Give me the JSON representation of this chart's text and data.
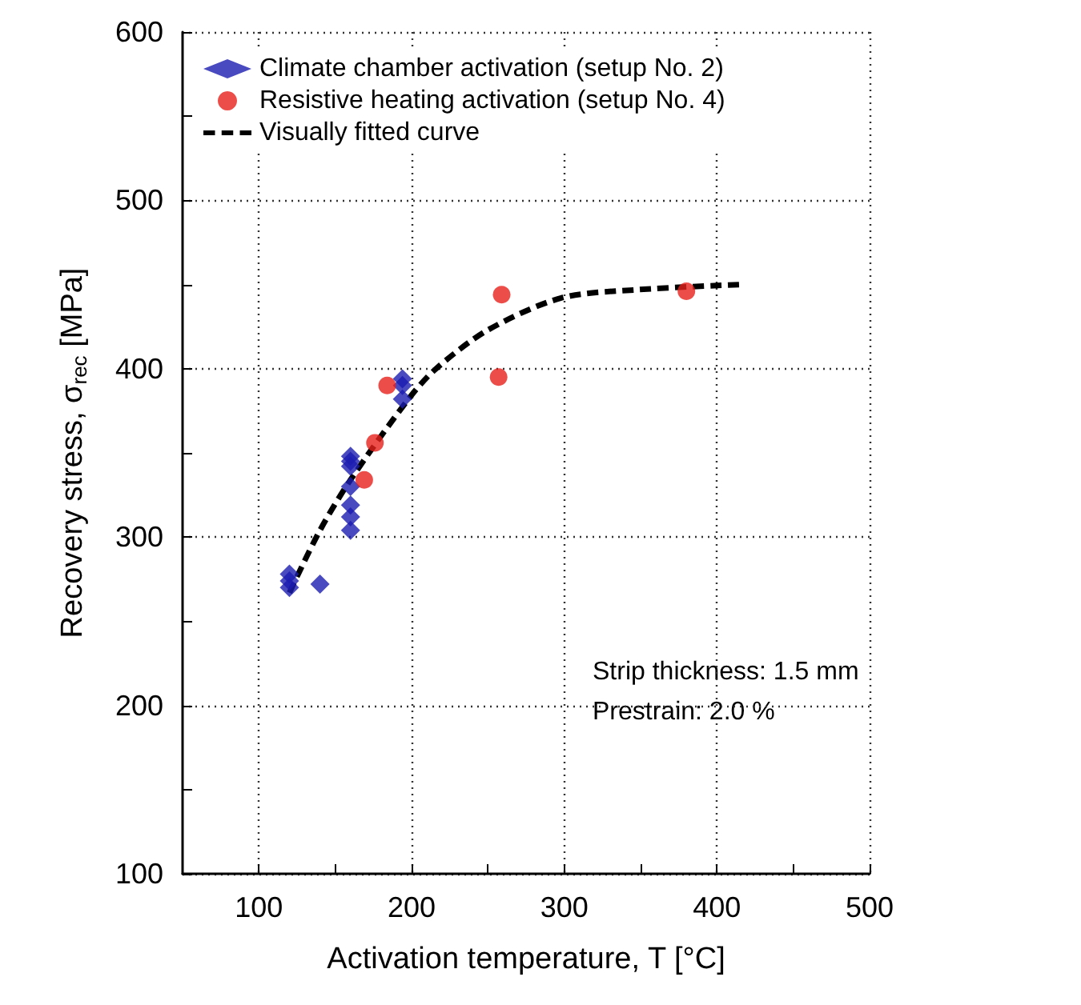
{
  "chart_data": {
    "type": "scatter",
    "xlabel": "Activation temperature, T [°C]",
    "ylabel": "Recovery stress, σ$_{rec}$ [MPa]",
    "xlim": [
      50,
      500
    ],
    "xticks": [
      100,
      {
        "value": 150,
        "label": null
      },
      200,
      {
        "value": 250,
        "label": null
      },
      300,
      {
        "value": 350,
        "label": null
      },
      400,
      {
        "value": 450,
        "label": null
      },
      500
    ],
    "ylim": [
      100,
      600
    ],
    "yticks": [
      100,
      {
        "value": 150,
        "label": null
      },
      200,
      {
        "value": 250,
        "label": null
      },
      300,
      {
        "value": 350,
        "label": null
      },
      400,
      {
        "value": 450,
        "label": null
      },
      500,
      {
        "value": 550,
        "label": null
      },
      600
    ],
    "grid": true,
    "legend": "top left",
    "annotations": [
      "Strip thickness: 1.5 mm",
      "Prestrain: 2.0 %"
    ],
    "series": [
      {
        "name": "Climate chamber activation (setup No. 2)",
        "marker": "diamond",
        "color": "#1c1cb0",
        "x": [
          120,
          120,
          120,
          140,
          160,
          160,
          160,
          160,
          160,
          160,
          160,
          194,
          194,
          194
        ],
        "values": [
          278,
          274,
          270,
          272,
          348,
          345,
          342,
          330,
          319,
          312,
          304,
          394,
          390,
          382
        ]
      },
      {
        "name": "Resistive heating activation (setup No. 4)",
        "marker": "circle",
        "color": "#e8201c",
        "x": [
          169,
          176,
          184,
          257,
          259,
          380
        ],
        "values": [
          334,
          356,
          390,
          395,
          444,
          446
        ]
      },
      {
        "name": "Visually fitted curve",
        "type": "line",
        "marker": "none",
        "line_style": "dashed",
        "color": "#000000",
        "x": [
          120,
          140,
          160,
          198,
          216,
          250,
          298,
          349,
          415
        ],
        "values": [
          267,
          304,
          334,
          382,
          400,
          423,
          442,
          447,
          450
        ]
      }
    ]
  }
}
